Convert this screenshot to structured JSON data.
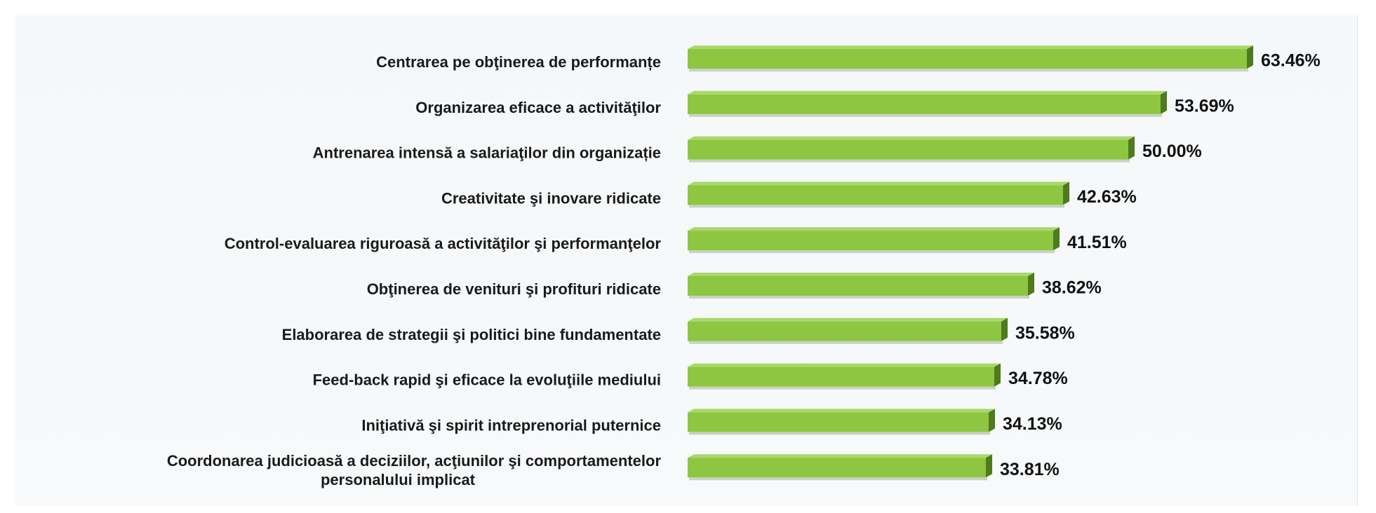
{
  "chart_data": {
    "type": "bar",
    "orientation": "horizontal",
    "title": "",
    "xlabel": "",
    "ylabel": "",
    "categories": [
      [
        "Centrarea pe obţinerea de performanțe"
      ],
      [
        "Organizarea eficace a activităţilor"
      ],
      [
        "Antrenarea intensă a salariaţilor din organizație"
      ],
      [
        "Creativitate şi inovare ridicate"
      ],
      [
        "Control-evaluarea riguroasă a activităţilor şi performanţelor"
      ],
      [
        "Obţinerea de venituri şi profituri ridicate"
      ],
      [
        "Elaborarea de strategii şi politici bine fundamentate"
      ],
      [
        "Feed-back rapid şi eficace la evoluţiile mediului"
      ],
      [
        "Iniţiativă şi spirit intreprenorial puternice"
      ],
      [
        "Coordonarea judicioasă a deciziilor, acţiunilor şi comportamentelor",
        "personalului implicat"
      ]
    ],
    "values": [
      63.46,
      53.69,
      50.0,
      42.63,
      41.51,
      38.62,
      35.58,
      34.78,
      34.13,
      33.81
    ],
    "value_labels": [
      "63.46%",
      "53.69%",
      "50.00%",
      "42.63%",
      "41.51%",
      "38.62%",
      "35.58%",
      "34.78%",
      "34.13%",
      "33.81%"
    ],
    "xlim": [
      0,
      63.46
    ],
    "grid": false,
    "legend": "none",
    "colors": {
      "bar_face": "#8dc641",
      "bar_top": "#a9d86a",
      "bar_side": "#4f7a1e",
      "bar_shadow": "#c9d2c2"
    }
  }
}
